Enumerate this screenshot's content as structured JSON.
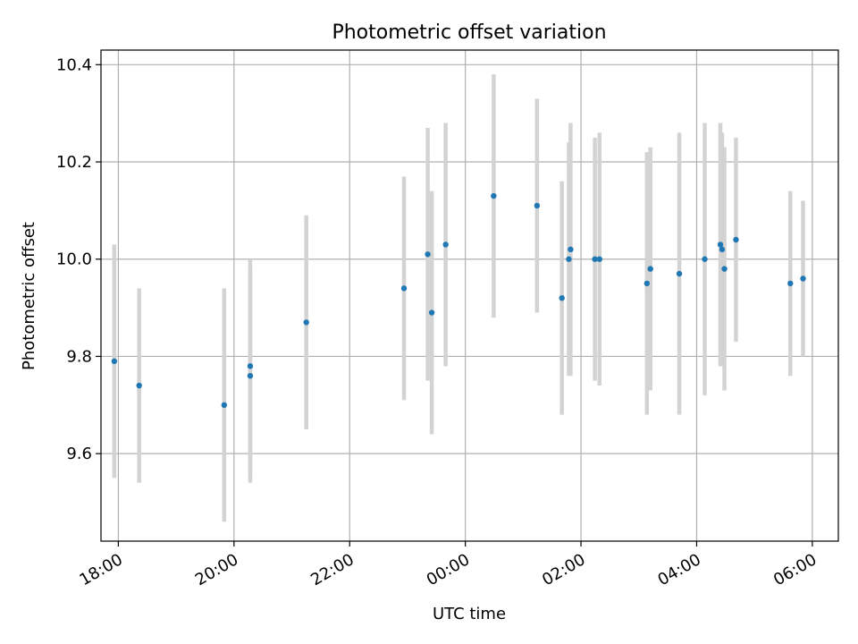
{
  "chart_data": {
    "type": "scatter",
    "title": "Photometric offset variation",
    "xlabel": "UTC time",
    "ylabel": "Photometric offset",
    "x_tick_labels": [
      "18:00",
      "20:00",
      "22:00",
      "00:00",
      "02:00",
      "04:00",
      "06:00"
    ],
    "x_tick_hours": [
      18,
      20,
      22,
      24,
      26,
      28,
      30
    ],
    "y_ticks": [
      9.6,
      9.8,
      10.0,
      10.2,
      10.4
    ],
    "y_tick_labels": [
      "9.6",
      "9.8",
      "10.0",
      "10.2",
      "10.4"
    ],
    "xlim_hours": [
      17.7,
      30.45
    ],
    "ylim": [
      9.42,
      10.43
    ],
    "grid": true,
    "colors": {
      "point": "#1f77b4",
      "errorbar": "#d3d3d3",
      "grid": "#b0b0b0"
    },
    "points": [
      {
        "time": "17:56",
        "hours": 17.93,
        "y": 9.79,
        "err": 0.24
      },
      {
        "time": "18:21",
        "hours": 18.36,
        "y": 9.74,
        "err": 0.2
      },
      {
        "time": "19:50",
        "hours": 19.83,
        "y": 9.7,
        "err": 0.24
      },
      {
        "time": "20:17",
        "hours": 20.28,
        "y": 9.78,
        "err": 0.22
      },
      {
        "time": "20:17",
        "hours": 20.28,
        "y": 9.76,
        "err": 0.22
      },
      {
        "time": "21:15",
        "hours": 21.25,
        "y": 9.87,
        "err": 0.22
      },
      {
        "time": "22:56",
        "hours": 22.94,
        "y": 9.94,
        "err": 0.23
      },
      {
        "time": "23:21",
        "hours": 23.35,
        "y": 10.01,
        "err": 0.26
      },
      {
        "time": "23:25",
        "hours": 23.42,
        "y": 9.89,
        "err": 0.25
      },
      {
        "time": "23:39",
        "hours": 23.66,
        "y": 10.03,
        "err": 0.25
      },
      {
        "time": "00:29",
        "hours": 24.49,
        "y": 10.13,
        "err": 0.25
      },
      {
        "time": "01:14",
        "hours": 25.24,
        "y": 10.11,
        "err": 0.22
      },
      {
        "time": "01:40",
        "hours": 25.67,
        "y": 9.92,
        "err": 0.24
      },
      {
        "time": "01:47",
        "hours": 25.79,
        "y": 10.0,
        "err": 0.24
      },
      {
        "time": "01:49",
        "hours": 25.82,
        "y": 10.02,
        "err": 0.26
      },
      {
        "time": "02:14",
        "hours": 26.24,
        "y": 10.0,
        "err": 0.25
      },
      {
        "time": "02:19",
        "hours": 26.32,
        "y": 10.0,
        "err": 0.26
      },
      {
        "time": "03:08",
        "hours": 27.14,
        "y": 9.95,
        "err": 0.27
      },
      {
        "time": "03:12",
        "hours": 27.2,
        "y": 9.98,
        "err": 0.25
      },
      {
        "time": "03:42",
        "hours": 27.7,
        "y": 9.97,
        "err": 0.29
      },
      {
        "time": "04:08",
        "hours": 28.14,
        "y": 10.0,
        "err": 0.28
      },
      {
        "time": "04:25",
        "hours": 28.41,
        "y": 10.03,
        "err": 0.25
      },
      {
        "time": "04:26",
        "hours": 28.44,
        "y": 10.02,
        "err": 0.24
      },
      {
        "time": "04:29",
        "hours": 28.48,
        "y": 9.98,
        "err": 0.25
      },
      {
        "time": "04:41",
        "hours": 28.68,
        "y": 10.04,
        "err": 0.21
      },
      {
        "time": "05:37",
        "hours": 29.62,
        "y": 9.95,
        "err": 0.19
      },
      {
        "time": "05:50",
        "hours": 29.84,
        "y": 9.96,
        "err": 0.16
      }
    ]
  }
}
